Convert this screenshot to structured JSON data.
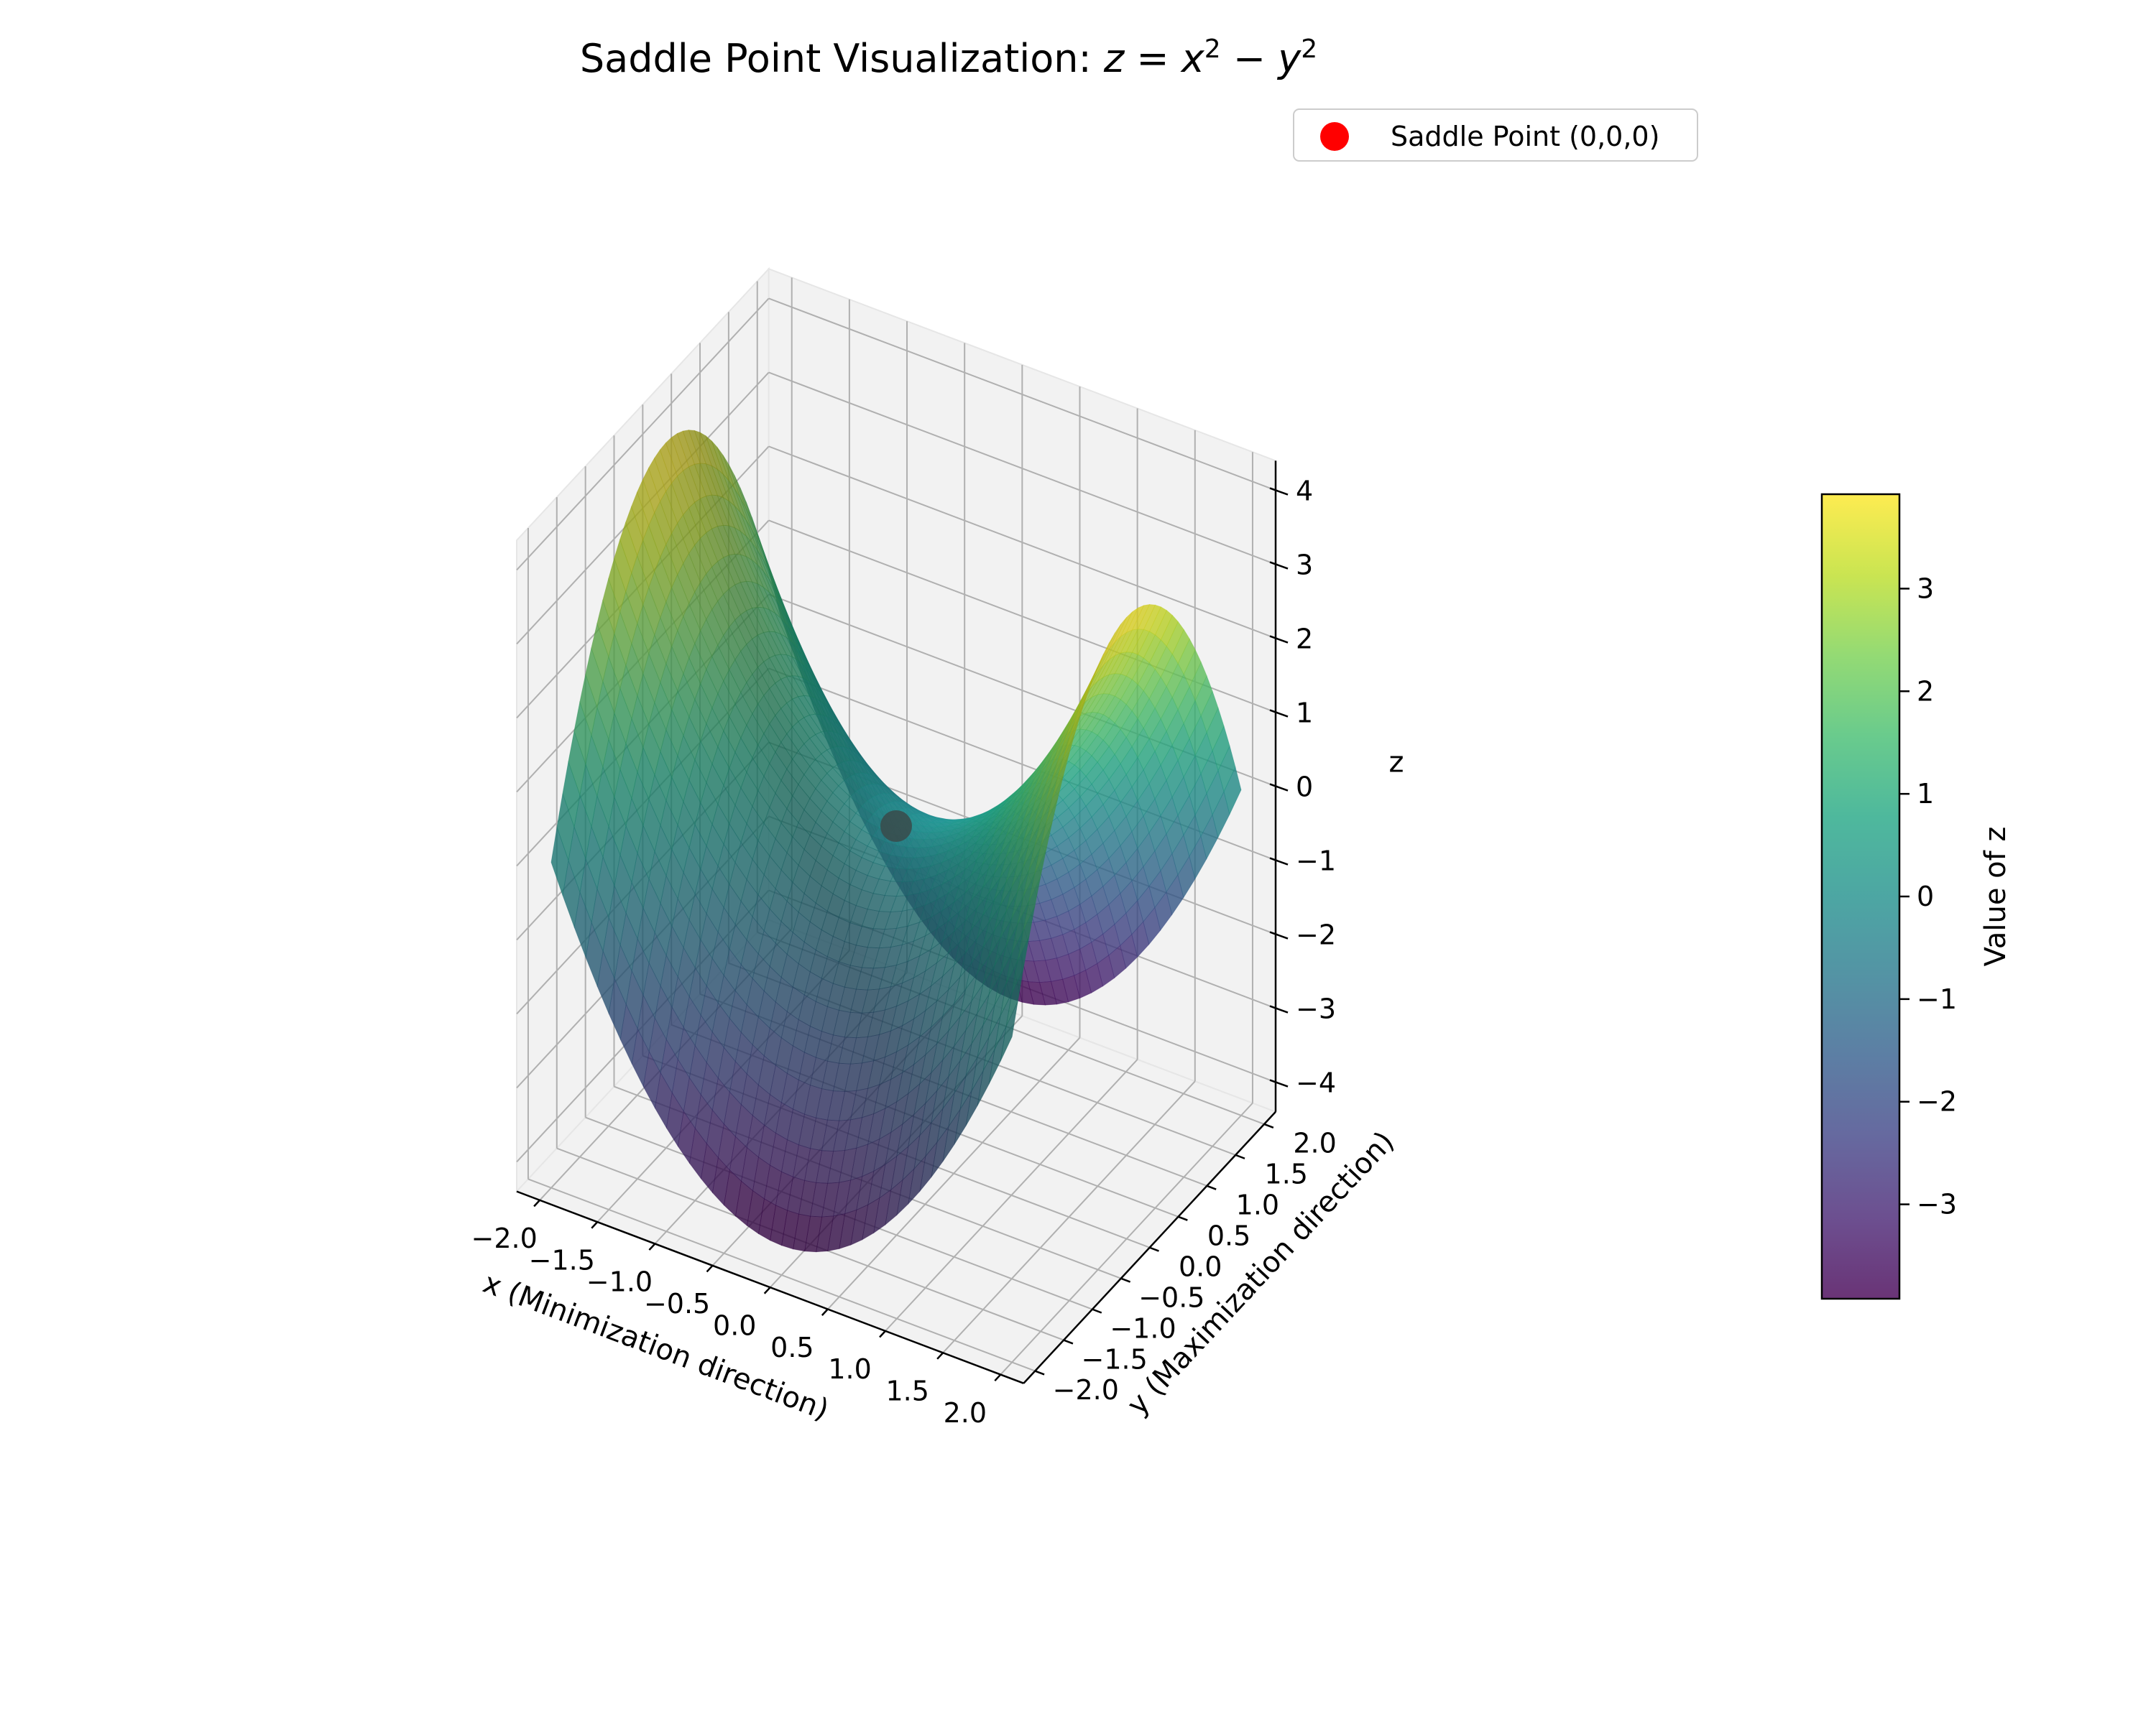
{
  "chart_data": {
    "type": "surface",
    "title": {
      "prefix": "Saddle Point Visualization: ",
      "math_z": "z",
      "math_eq": " = ",
      "math_x": "x",
      "math_minus": " − ",
      "math_y": "y",
      "exp": "2"
    },
    "function": "z = x^2 - y^2",
    "x": {
      "label": "x (Minimization direction)",
      "range": [
        -2,
        2
      ],
      "ticks": [
        -2.0,
        -1.5,
        -1.0,
        -0.5,
        0.0,
        0.5,
        1.0,
        1.5,
        2.0
      ],
      "tick_labels": [
        "−2.0",
        "−1.5",
        "−1.0",
        "−0.5",
        "0.0",
        "0.5",
        "1.0",
        "1.5",
        "2.0"
      ]
    },
    "y": {
      "label": "y (Maximization direction)",
      "range": [
        -2,
        2
      ],
      "ticks": [
        -2.0,
        -1.5,
        -1.0,
        -0.5,
        0.0,
        0.5,
        1.0,
        1.5,
        2.0
      ],
      "tick_labels": [
        "−2.0",
        "−1.5",
        "−1.0",
        "−0.5",
        "0.0",
        "0.5",
        "1.0",
        "1.5",
        "2.0"
      ]
    },
    "z": {
      "label": "z",
      "range": [
        -4.4,
        4.4
      ],
      "ticks": [
        -4,
        -3,
        -2,
        -1,
        0,
        1,
        2,
        3,
        4
      ],
      "tick_labels": [
        "−4",
        "−3",
        "−2",
        "−1",
        "0",
        "1",
        "2",
        "3",
        "4"
      ]
    },
    "colormap": "viridis",
    "surface_alpha": 0.8,
    "grid": true,
    "points": [
      {
        "name": "Saddle Point (0,0,0)",
        "x": 0,
        "y": 0,
        "z": 0,
        "color": "#ff0000"
      }
    ],
    "legend": {
      "placement": "top-right",
      "entries": [
        "Saddle Point (0,0,0)"
      ]
    },
    "colorbar": {
      "label": "Value of z",
      "range": [
        -3.92,
        3.92
      ],
      "ticks": [
        -3,
        -2,
        -1,
        0,
        1,
        2,
        3
      ],
      "tick_labels": [
        "−3",
        "−2",
        "−1",
        "0",
        "1",
        "2",
        "3"
      ]
    }
  }
}
